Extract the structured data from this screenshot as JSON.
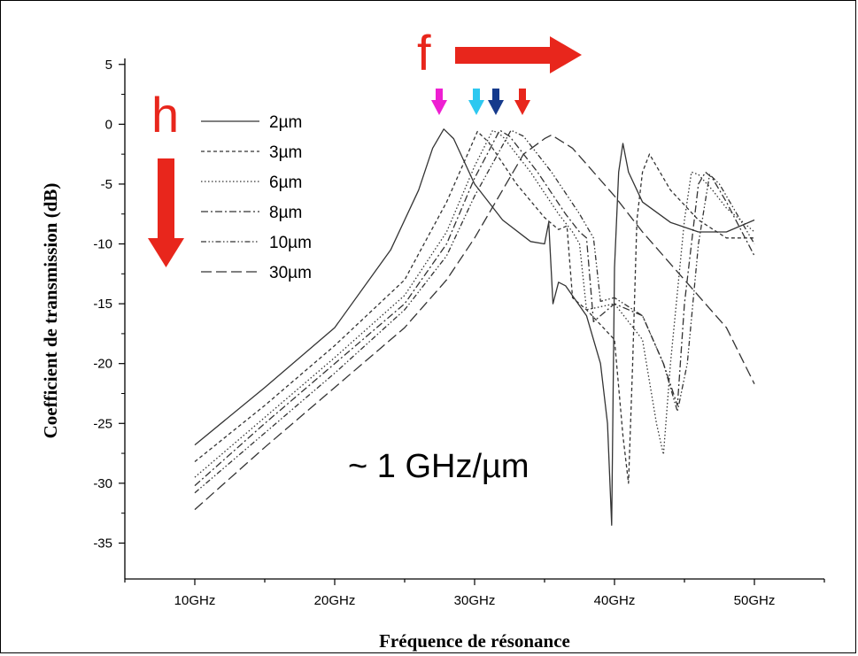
{
  "chart_data": {
    "type": "line",
    "title": "",
    "xlabel": "Fréquence de résonance",
    "ylabel": "Coefficient de transmission (dB)",
    "xlim": [
      5,
      55
    ],
    "ylim": [
      -38,
      5.5
    ],
    "x_ticks": [
      10,
      20,
      30,
      40,
      50
    ],
    "x_tick_labels": [
      "10GHz",
      "20GHz",
      "30GHz",
      "40GHz",
      "50GHz"
    ],
    "y_ticks": [
      5,
      0,
      -5,
      -10,
      -15,
      -20,
      -25,
      -30,
      -35
    ],
    "y_tick_labels": [
      "5",
      "0",
      "-5",
      "-10",
      "-15",
      "-20",
      "-25",
      "-30",
      "-35"
    ],
    "grid": false,
    "legend_position": "top-left",
    "series": [
      {
        "name": "2µm",
        "dash": "solid",
        "x": [
          10,
          15,
          20,
          24,
          26,
          27,
          27.8,
          28.5,
          30,
          32,
          34,
          35,
          35.3,
          35.6,
          36,
          36.5,
          38,
          39,
          39.5,
          39.8,
          40,
          40.3,
          40.6,
          41,
          42,
          44,
          46,
          48,
          50
        ],
        "y": [
          -26.8,
          -22,
          -17,
          -10.5,
          -5.5,
          -2,
          -0.4,
          -1.2,
          -5,
          -8,
          -9.8,
          -10,
          -8.2,
          -15,
          -13.2,
          -13.5,
          -16,
          -20,
          -25,
          -33.5,
          -12,
          -4,
          -1.6,
          -4,
          -6.5,
          -8.2,
          -9,
          -9,
          -8
        ]
      },
      {
        "name": "3µm",
        "dash": "short-dash",
        "x": [
          10,
          15,
          20,
          25,
          28,
          29.5,
          30.2,
          31,
          33,
          35,
          36,
          36.6,
          37,
          38,
          40,
          40.6,
          41,
          41.3,
          41.6,
          42,
          42.5,
          43,
          44,
          46,
          48,
          50
        ],
        "y": [
          -28.2,
          -23.5,
          -18.5,
          -13,
          -6.5,
          -2.5,
          -0.6,
          -1.5,
          -5,
          -7.8,
          -8.8,
          -8.5,
          -14.5,
          -15.5,
          -18,
          -26,
          -30,
          -20,
          -8,
          -4,
          -2.5,
          -3.5,
          -5.5,
          -8,
          -9.5,
          -9.5
        ]
      },
      {
        "name": "6µm",
        "dash": "dot",
        "x": [
          10,
          15,
          20,
          25,
          28,
          30,
          31.3,
          32,
          34,
          36,
          37,
          37.5,
          38,
          40,
          42,
          43,
          43.5,
          44,
          45,
          45.5,
          46,
          47,
          48,
          50
        ],
        "y": [
          -29.5,
          -24.5,
          -19.5,
          -14.3,
          -9,
          -3.5,
          -0.5,
          -1,
          -4,
          -7.5,
          -9,
          -10,
          -15.5,
          -15,
          -18,
          -25,
          -27.6,
          -20,
          -8,
          -4,
          -4.2,
          -5.5,
          -7,
          -9
        ]
      },
      {
        "name": "8µm",
        "dash": "dash-dot",
        "x": [
          10,
          15,
          20,
          25,
          28,
          30,
          31.8,
          32.5,
          34.5,
          36.5,
          37.5,
          38,
          38.5,
          40,
          42,
          43.5,
          44.5,
          45,
          46,
          46.5,
          47,
          48,
          50
        ],
        "y": [
          -30.2,
          -25,
          -20,
          -15,
          -10,
          -4.5,
          -0.5,
          -1,
          -4,
          -7.5,
          -9,
          -9.5,
          -16.5,
          -15,
          -16,
          -20,
          -23.5,
          -15,
          -5,
          -4,
          -4.5,
          -6.5,
          -11
        ]
      },
      {
        "name": "10µm",
        "dash": "dash-dot-dot",
        "x": [
          10,
          15,
          20,
          25,
          28,
          30,
          32.6,
          33.5,
          35.5,
          37.5,
          38.5,
          39,
          40,
          42,
          43.5,
          44.5,
          45.2,
          46,
          46.8,
          47.5,
          48.5,
          50
        ],
        "y": [
          -30.8,
          -25.8,
          -20.8,
          -15.5,
          -11,
          -6,
          -0.5,
          -1,
          -4,
          -7.5,
          -9.5,
          -14.8,
          -14.5,
          -16,
          -20,
          -24,
          -20,
          -10,
          -4.2,
          -5,
          -7,
          -10
        ]
      },
      {
        "name": "30µm",
        "dash": "long-dash",
        "x": [
          10,
          15,
          20,
          25,
          28,
          30,
          32,
          33.5,
          35,
          35.5,
          37,
          40,
          42,
          45,
          48,
          50
        ],
        "y": [
          -32.2,
          -27,
          -22,
          -17,
          -13,
          -9.5,
          -5.5,
          -2.5,
          -1.2,
          -0.9,
          -2,
          -6,
          -9,
          -13,
          -17,
          -21.7
        ]
      }
    ]
  },
  "annotations": {
    "letter_f": "f",
    "letter_h": "h",
    "rate": "~ 1 GHz/µm"
  },
  "colors": {
    "arrow_red": "#e8261c",
    "arrow_magenta": "#ee1fd2",
    "arrow_cyan": "#2ec8f0",
    "arrow_navy": "#153a8c",
    "arrow_small_red": "#e8261c"
  }
}
